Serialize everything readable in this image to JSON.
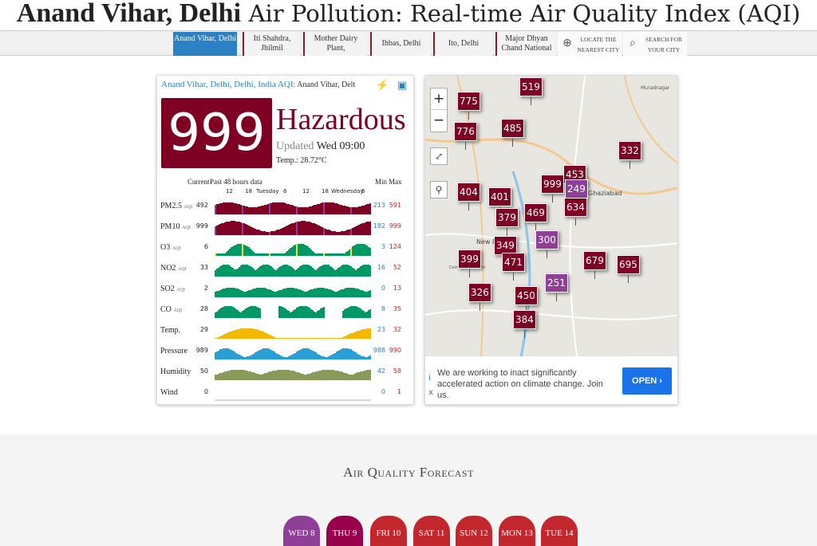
{
  "header": {
    "station_bold": "Anand Vihar, Delhi",
    "title_rest": "Air Pollution: Real-time Air Quality Index (AQI)"
  },
  "tabs": [
    {
      "label": "Anand Vihar, Delhi",
      "active": true
    },
    {
      "label": "Iti Shahdra, Jhilmil"
    },
    {
      "label": "Mother Dairy Plant,"
    },
    {
      "label": "Ihbas, Delhi"
    },
    {
      "label": "Ito, Delhi"
    },
    {
      "label": "Major Dhyan Chand National"
    },
    {
      "label": "Locate the nearest city",
      "icon": "locate-icon"
    },
    {
      "label": "Search for your city",
      "icon": "search-icon"
    }
  ],
  "station": {
    "name": "Anand Vihar, Delhi, Delhi, India",
    "aqi_label": "AQI",
    "sub": ": Anand Vihar, Delt",
    "aqi": "999",
    "level": "Hazardous",
    "updated_label": "Updated",
    "updated_time": "Wed 09:00",
    "temp": "Temp.: 28.72°C",
    "colors": {
      "hazardous": "#7e0023",
      "very_unhealthy": "#8f3f97",
      "unhealthy": "#c2272d",
      "good": "#009966",
      "moderate": "#ffde33"
    }
  },
  "history": {
    "current_label": "Current",
    "past_label": "Past 48 hours data",
    "min_label": "Min",
    "max_label": "Max",
    "ticks": [
      "12",
      "18",
      "Tuesday",
      "6",
      "12",
      "18",
      "Wednesday",
      "6"
    ],
    "rows": [
      {
        "label": "PM2.5",
        "aqi": "AQI",
        "current": "492",
        "min": "213",
        "max": "591"
      },
      {
        "label": "PM10",
        "aqi": "AQI",
        "current": "999",
        "min": "182",
        "max": "999"
      },
      {
        "label": "O3",
        "aqi": "AQI",
        "current": "6",
        "min": "3",
        "max": "124"
      },
      {
        "label": "NO2",
        "aqi": "AQI",
        "current": "33",
        "min": "16",
        "max": "52"
      },
      {
        "label": "SO2",
        "aqi": "AQI",
        "current": "2",
        "min": "0",
        "max": "13"
      },
      {
        "label": "CO",
        "aqi": "AQI",
        "current": "28",
        "min": "8",
        "max": "35"
      },
      {
        "label": "Temp.",
        "aqi": "",
        "current": "29",
        "min": "23",
        "max": "32"
      },
      {
        "label": "Pressure",
        "aqi": "",
        "current": "989",
        "min": "988",
        "max": "990"
      },
      {
        "label": "Humidity",
        "aqi": "",
        "current": "50",
        "min": "42",
        "max": "58"
      },
      {
        "label": "Wind",
        "aqi": "",
        "current": "0",
        "min": "0",
        "max": "1"
      }
    ]
  },
  "map": {
    "zoom_in": "+",
    "zoom_out": "−",
    "labels": [
      "Muradnagar",
      "Ghaziabad",
      "New D",
      "Delhi Cantonment"
    ],
    "markers": [
      "519",
      "775",
      "776",
      "485",
      "332",
      "999",
      "453",
      "249",
      "404",
      "401",
      "379",
      "469",
      "634",
      "300",
      "349",
      "471",
      "399",
      "679",
      "695",
      "251",
      "326",
      "450",
      "384"
    ]
  },
  "ad": {
    "text": "We are working to inact significantly accelerated action on climate change. Join us.",
    "button": "OPEN ›",
    "info_icon": "i",
    "close_icon": "x"
  },
  "forecast": {
    "title": "Air Quality Forecast",
    "days": [
      {
        "label": "WED 8",
        "color": "#8f3f97"
      },
      {
        "label": "THU 9",
        "color": "#99004c"
      },
      {
        "label": "FRI 10",
        "color": "#c2272d"
      },
      {
        "label": "SAT 11",
        "color": "#c2272d"
      },
      {
        "label": "SUN 12",
        "color": "#c2272d"
      },
      {
        "label": "MON 13",
        "color": "#c2272d"
      },
      {
        "label": "TUE 14",
        "color": "#c2272d"
      }
    ]
  }
}
